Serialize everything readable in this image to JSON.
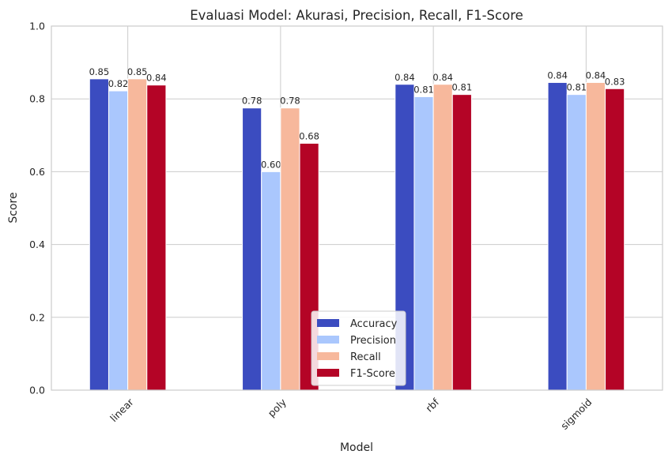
{
  "chart_data": {
    "type": "bar",
    "title": "Evaluasi Model: Akurasi, Precision, Recall, F1-Score",
    "xlabel": "Model",
    "ylabel": "Score",
    "ylim": [
      0,
      1.0
    ],
    "yticks": [
      "0.0",
      "0.2",
      "0.4",
      "0.6",
      "0.8",
      "1.0"
    ],
    "categories": [
      "linear",
      "poly",
      "rbf",
      "sigmoid"
    ],
    "grid": true,
    "legend_position": "bottom-center",
    "series": [
      {
        "name": "Accuracy",
        "color": "#3b4cc0",
        "values": [
          0.855,
          0.775,
          0.84,
          0.845
        ],
        "labels": [
          "0.85",
          "0.78",
          "0.84",
          "0.84"
        ]
      },
      {
        "name": "Precision",
        "color": "#aac7fd",
        "values": [
          0.822,
          0.6,
          0.806,
          0.812
        ],
        "labels": [
          "0.82",
          "0.60",
          "0.81",
          "0.81"
        ]
      },
      {
        "name": "Recall",
        "color": "#f7b89c",
        "values": [
          0.855,
          0.775,
          0.84,
          0.845
        ],
        "labels": [
          "0.85",
          "0.78",
          "0.84",
          "0.84"
        ]
      },
      {
        "name": "F1-Score",
        "color": "#b40426",
        "values": [
          0.838,
          0.678,
          0.812,
          0.828
        ],
        "labels": [
          "0.84",
          "0.68",
          "0.81",
          "0.83"
        ]
      }
    ]
  }
}
